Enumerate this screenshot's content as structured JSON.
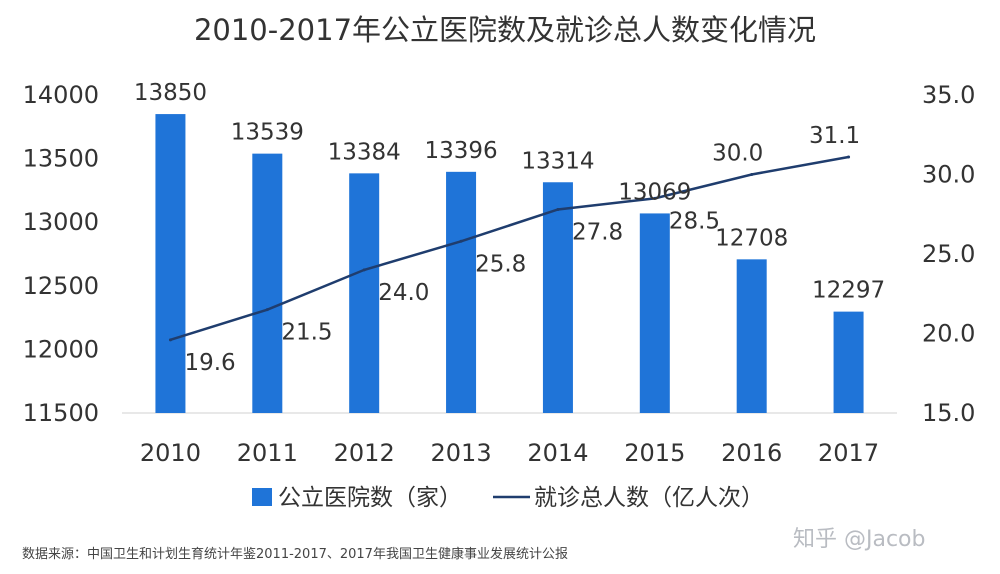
{
  "chart_data": {
    "type": "bar",
    "title": "2010-2017年公立医院数及就诊总人数变化情况",
    "categories": [
      "2010",
      "2011",
      "2012",
      "2013",
      "2014",
      "2015",
      "2016",
      "2017"
    ],
    "series": [
      {
        "name": "公立医院数（家）",
        "type": "bar",
        "axis": "left",
        "color": "#1f74d8",
        "values": [
          13850,
          13539,
          13384,
          13396,
          13314,
          13069,
          12708,
          12297
        ]
      },
      {
        "name": "就诊总人数（亿人次）",
        "type": "line",
        "axis": "right",
        "color": "#1f3d6e",
        "values": [
          19.6,
          21.5,
          24.0,
          25.8,
          27.8,
          28.5,
          30.0,
          31.1
        ]
      }
    ],
    "y_left": {
      "min": 11500,
      "max": 14000,
      "ticks": [
        "11500",
        "12000",
        "12500",
        "13000",
        "13500",
        "14000"
      ]
    },
    "y_right": {
      "min": 15.0,
      "max": 35.0,
      "ticks": [
        "15.0",
        "20.0",
        "25.0",
        "30.0",
        "35.0"
      ]
    },
    "grid": false,
    "legend_position": "bottom"
  },
  "source_note": "数据来源：中国卫生和计划生育统计年鉴2011-2017、2017年我国卫生健康事业发展统计公报",
  "watermark": "知乎 @Jacob"
}
